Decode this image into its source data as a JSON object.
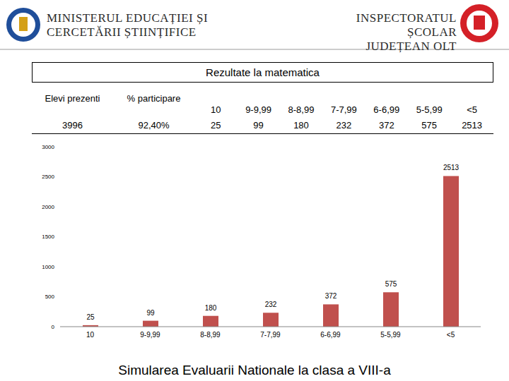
{
  "header": {
    "left": [
      "MINISTERUL EDUCAȚIEI ȘI",
      "CERCETĂRII ȘTIINȚIFICE"
    ],
    "right": [
      "INSPECTORATUL ȘCOLAR",
      "JUDEȚEAN OLT"
    ]
  },
  "table": {
    "title": "Rezultate la matematica",
    "columns": [
      "Elevi prezenti",
      "% participare",
      "10",
      "9-9,99",
      "8-8,99",
      "7-7,99",
      "6-6,99",
      "5-5,99",
      "<5"
    ],
    "rows": [
      [
        "3996",
        "92,40%",
        "25",
        "99",
        "180",
        "232",
        "372",
        "575",
        "2513"
      ]
    ]
  },
  "chart_data": {
    "type": "bar",
    "title": "Simularea Evaluarii Nationale la clasa a VIII-a",
    "categories": [
      "10",
      "9-9,99",
      "8-8,99",
      "7-7,99",
      "6-6,99",
      "5-5,99",
      "<5"
    ],
    "values": [
      25,
      99,
      180,
      232,
      372,
      575,
      2513
    ],
    "color": "#c0504d",
    "ylim": [
      0,
      3000
    ],
    "yticks": [
      0,
      500,
      1000,
      1500,
      2000,
      2500,
      3000
    ],
    "grid": false,
    "data_labels": true
  }
}
